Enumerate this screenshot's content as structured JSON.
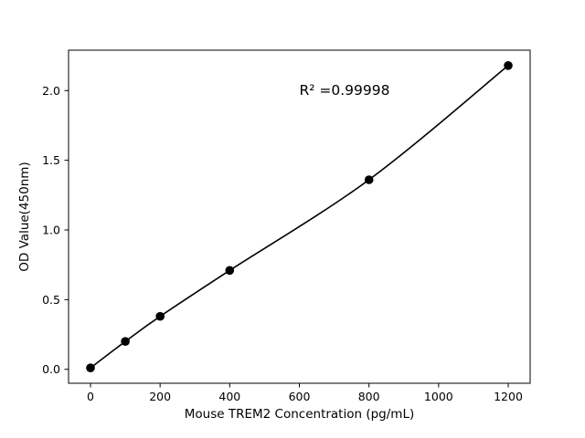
{
  "figure": {
    "background": "#ffffff"
  },
  "chart_data": {
    "type": "scatter",
    "title": "",
    "xlabel": "Mouse TREM2 Concentration (pg/mL)",
    "ylabel": "OD Value(450nm)",
    "annotation": {
      "text": "R² =0.99998",
      "x": 600,
      "y": 1.97
    },
    "points": {
      "x": [
        0,
        100,
        200,
        400,
        800,
        1200
      ],
      "y": [
        0.01,
        0.2,
        0.38,
        0.71,
        1.36,
        2.18
      ]
    },
    "fit_line": "smooth curve through all points",
    "xticks": {
      "values": [
        0,
        200,
        400,
        600,
        800,
        1000,
        1200
      ],
      "labels": [
        "0",
        "200",
        "400",
        "600",
        "800",
        "1000",
        "1200"
      ]
    },
    "yticks": {
      "values": [
        0.0,
        0.5,
        1.0,
        1.5,
        2.0
      ],
      "labels": [
        "0.0",
        "0.5",
        "1.0",
        "1.5",
        "2.0"
      ]
    },
    "xlim": [
      -63,
      1263
    ],
    "ylim": [
      -0.1,
      2.29
    ],
    "marker_color": "#000000",
    "line_color": "#000000",
    "axis_color": "#000000",
    "grid": false,
    "legend": "none"
  }
}
